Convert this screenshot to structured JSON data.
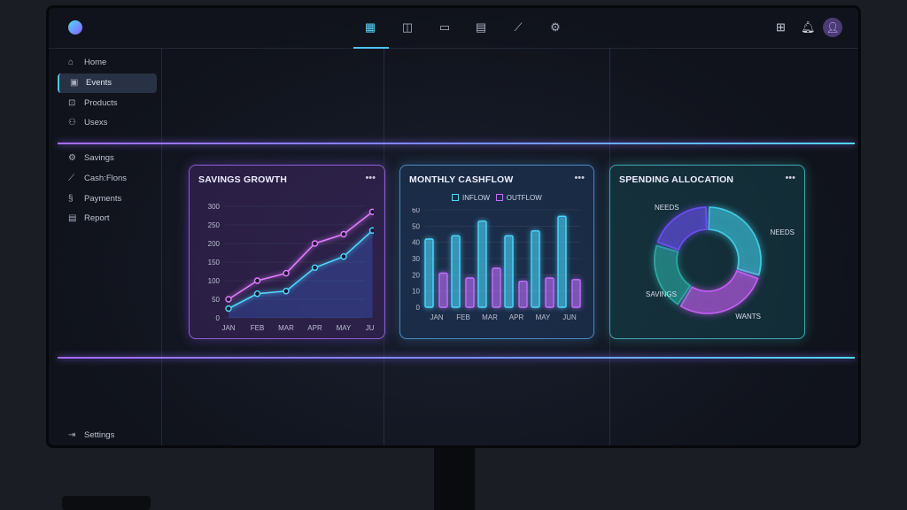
{
  "topbar": {
    "tabs": [
      "grid-icon",
      "widget-icon",
      "card-icon",
      "list-icon",
      "trend-icon",
      "settings-icon"
    ],
    "active_tab": 0,
    "right_icons": [
      "layout-icon",
      "bell-icon",
      "user-avatar-icon"
    ]
  },
  "sidebar": {
    "items": [
      {
        "label": "Home",
        "icon": "home-icon"
      },
      {
        "label": "Events",
        "icon": "wallet-icon",
        "active": true
      },
      {
        "label": "Products",
        "icon": "products-icon"
      },
      {
        "label": "Usexs",
        "icon": "users-icon"
      },
      {
        "label": "Savings",
        "icon": "savings-icon"
      },
      {
        "label": "Cash:Flons",
        "icon": "cashflow-icon"
      },
      {
        "label": "Payments",
        "icon": "payments-icon"
      },
      {
        "label": "Report",
        "icon": "report-icon"
      }
    ],
    "settings": "Settings"
  },
  "colors": {
    "cyan": "#4fd8ff",
    "purple": "#b070ff",
    "pink": "#e27cff",
    "accent": "#4fc3f7"
  },
  "chart_data": [
    {
      "type": "line",
      "title": "SAVINGS GROWTH",
      "categories": [
        "JAN",
        "FEB",
        "MAR",
        "APR",
        "MAY",
        "JUN"
      ],
      "yticks": [
        "0",
        "50",
        "100",
        "150",
        "200",
        "250",
        "300"
      ],
      "ylim": [
        0,
        300
      ],
      "grid": true,
      "series": [
        {
          "color": "#e27cff",
          "values": [
            50,
            100,
            120,
            200,
            225,
            285
          ]
        },
        {
          "color": "#4fd8ff",
          "values": [
            25,
            65,
            72,
            135,
            165,
            235
          ]
        }
      ]
    },
    {
      "type": "bar",
      "title": "MONTHLY CASHFLOW",
      "categories": [
        "JAN",
        "FEB",
        "MAR",
        "APR",
        "MAY",
        "JUN"
      ],
      "yticks": [
        "0",
        "10",
        "20",
        "30",
        "40",
        "50",
        "60"
      ],
      "ylim": [
        0,
        60
      ],
      "grid": true,
      "legend": "top",
      "series": [
        {
          "name": "INFLOW",
          "color": "#4fd8ff",
          "values": [
            42,
            44,
            53,
            44,
            47,
            56
          ]
        },
        {
          "name": "OUTFLOW",
          "color": "#c070ff",
          "values": [
            21,
            18,
            24,
            16,
            18,
            17
          ]
        }
      ]
    },
    {
      "type": "pie",
      "title": "SPENDING ALLOCATION",
      "donut": true,
      "slices": [
        {
          "label": "NEEDS",
          "color": "#3fc9e0",
          "value": 30
        },
        {
          "label": "WANTS",
          "color": "#c35cf0",
          "value": 29
        },
        {
          "label": "SAVINGS",
          "color": "#2aa8a0",
          "value": 21
        },
        {
          "label": "NEEDS",
          "color": "#6a4ff0",
          "value": 20
        }
      ]
    }
  ]
}
